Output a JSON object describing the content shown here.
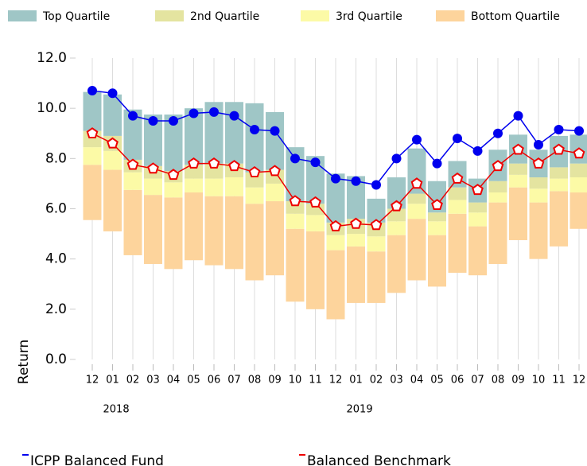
{
  "chart_data": {
    "type": "floating-stacked-bar",
    "y_label": "Return",
    "categories": [
      "12",
      "01",
      "02",
      "03",
      "04",
      "05",
      "06",
      "07",
      "08",
      "09",
      "10",
      "11",
      "12",
      "01",
      "02",
      "03",
      "04",
      "05",
      "06",
      "07",
      "08",
      "09",
      "10",
      "11",
      "12"
    ],
    "category_years": [
      null,
      "2018",
      null,
      null,
      null,
      null,
      null,
      null,
      null,
      null,
      null,
      null,
      null,
      "2019",
      null,
      null,
      null,
      null,
      null,
      null,
      null,
      null,
      null,
      null,
      null
    ],
    "ylim": [
      0,
      12
    ],
    "yticks": [
      {
        "value": 0,
        "label": "0.0"
      },
      {
        "value": 2,
        "label": "2.0"
      },
      {
        "value": 4,
        "label": "4.0"
      },
      {
        "value": 6,
        "label": "6.0"
      },
      {
        "value": 8,
        "label": "8.0"
      },
      {
        "value": 10,
        "label": "10.0"
      },
      {
        "value": 12,
        "label": "12.0"
      }
    ],
    "grid": true,
    "base": [
      5.55,
      5.1,
      4.15,
      3.8,
      3.6,
      3.95,
      3.75,
      3.6,
      3.15,
      3.35,
      2.3,
      2.0,
      1.6,
      2.25,
      2.25,
      2.65,
      3.15,
      2.9,
      3.45,
      3.35,
      3.8,
      4.75,
      4.0,
      4.5,
      5.2
    ],
    "series": [
      {
        "name": "Top Quartile",
        "color": "#9fc6c6",
        "values": [
          1.55,
          1.65,
          2.0,
          2.05,
          2.25,
          2.25,
          2.45,
          2.45,
          2.75,
          2.3,
          2.15,
          1.9,
          1.95,
          1.7,
          0.95,
          1.25,
          1.8,
          1.25,
          1.05,
          0.95,
          1.25,
          1.15,
          1.1,
          1.25,
          1.15
        ]
      },
      {
        "name": "2nd Quartile",
        "color": "#e4e4a0",
        "values": [
          0.65,
          0.6,
          0.5,
          0.5,
          0.45,
          0.55,
          0.6,
          0.55,
          0.6,
          0.55,
          0.5,
          0.45,
          0.5,
          0.6,
          0.55,
          0.5,
          0.4,
          0.35,
          0.5,
          0.4,
          0.45,
          0.45,
          0.45,
          0.45,
          0.55
        ]
      },
      {
        "name": "3rd Quartile",
        "color": "#fcfaa6",
        "values": [
          0.7,
          0.75,
          0.7,
          0.65,
          0.6,
          0.55,
          0.7,
          0.75,
          0.65,
          0.7,
          0.6,
          0.65,
          0.6,
          0.5,
          0.6,
          0.55,
          0.6,
          0.55,
          0.55,
          0.55,
          0.4,
          0.5,
          0.55,
          0.5,
          0.6
        ]
      },
      {
        "name": "Bottom Quartile",
        "color": "#fdd49c",
        "values": [
          2.2,
          2.45,
          2.6,
          2.75,
          2.85,
          2.7,
          2.75,
          2.9,
          3.05,
          2.95,
          2.9,
          3.1,
          2.75,
          2.25,
          2.05,
          2.3,
          2.45,
          2.05,
          2.35,
          1.95,
          2.45,
          2.1,
          2.25,
          2.2,
          1.45
        ]
      }
    ],
    "lines": [
      {
        "name": "ICPP Balanced Fund",
        "color": "#0000ee",
        "marker": "circle",
        "values": [
          10.7,
          10.6,
          9.7,
          9.5,
          9.5,
          9.8,
          9.85,
          9.7,
          9.15,
          9.1,
          8.0,
          7.85,
          7.2,
          7.1,
          6.95,
          8.0,
          8.75,
          7.8,
          8.8,
          8.3,
          9.0,
          9.7,
          8.55,
          9.15,
          9.1
        ]
      },
      {
        "name": "Balanced Benchmark",
        "color": "#ee0000",
        "marker": "pentagon",
        "values": [
          9.0,
          8.6,
          7.75,
          7.6,
          7.35,
          7.8,
          7.8,
          7.7,
          7.45,
          7.5,
          6.3,
          6.25,
          5.3,
          5.4,
          5.35,
          6.1,
          7.0,
          6.15,
          7.2,
          6.75,
          7.7,
          8.35,
          7.8,
          8.35,
          8.2
        ]
      }
    ]
  }
}
